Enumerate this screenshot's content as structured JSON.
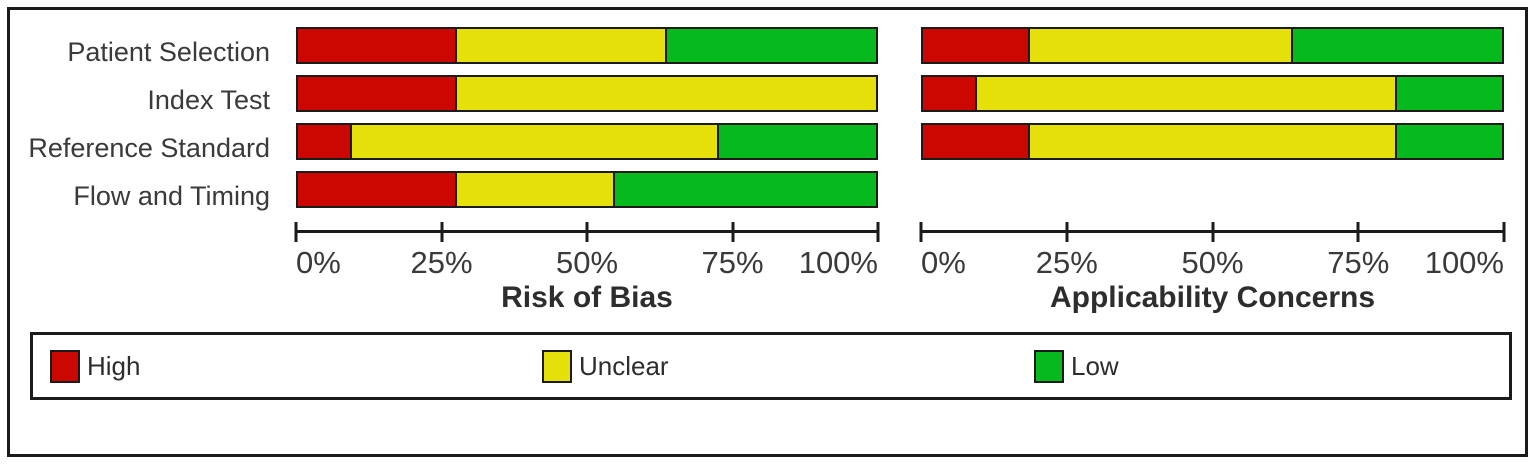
{
  "figure_type": "QUADAS-2 quality assessment summary",
  "rows": [
    "Patient Selection",
    "Index Test",
    "Reference Standard",
    "Flow and Timing"
  ],
  "legend": [
    {
      "key": "high",
      "label": "High",
      "color": "#cc0600"
    },
    {
      "key": "unclear",
      "label": "Unclear",
      "color": "#e6e00a"
    },
    {
      "key": "low",
      "label": "Low",
      "color": "#06ba1e"
    }
  ],
  "colors": {
    "outline": "#1b1b1b",
    "text": "#3a3a3a",
    "title_text": "#2d2d2d",
    "background": "#ffffff"
  },
  "chart_data": [
    {
      "type": "bar",
      "orientation": "horizontal-stacked",
      "title": "Risk of Bias",
      "categories": [
        "Patient Selection",
        "Index Test",
        "Reference Standard",
        "Flow and Timing"
      ],
      "series": [
        {
          "name": "High",
          "values": [
            27.27,
            27.27,
            9.09,
            27.27
          ]
        },
        {
          "name": "Unclear",
          "values": [
            36.36,
            72.73,
            63.64,
            27.27
          ]
        },
        {
          "name": "Low",
          "values": [
            36.36,
            0,
            27.27,
            45.45
          ]
        }
      ],
      "xlim": [
        0,
        100
      ],
      "ticks": [
        "0%",
        "25%",
        "50%",
        "75%",
        "100%"
      ],
      "grid": false,
      "unit": "percent of studies"
    },
    {
      "type": "bar",
      "orientation": "horizontal-stacked",
      "title": "Applicability Concerns",
      "categories": [
        "Patient Selection",
        "Index Test",
        "Reference Standard"
      ],
      "series": [
        {
          "name": "High",
          "values": [
            18.18,
            9.09,
            18.18
          ]
        },
        {
          "name": "Unclear",
          "values": [
            45.45,
            72.73,
            63.64
          ]
        },
        {
          "name": "Low",
          "values": [
            36.36,
            18.18,
            18.18
          ]
        }
      ],
      "xlim": [
        0,
        100
      ],
      "ticks": [
        "0%",
        "25%",
        "50%",
        "75%",
        "100%"
      ],
      "grid": false,
      "unit": "percent of studies"
    }
  ]
}
